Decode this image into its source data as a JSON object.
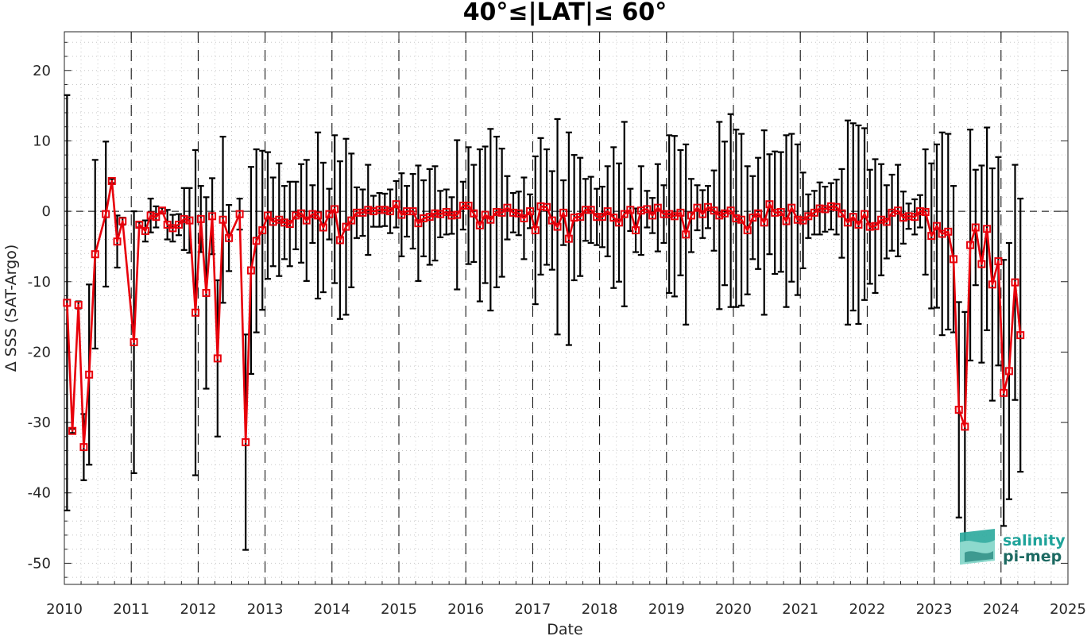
{
  "chart_data": {
    "type": "line",
    "title": "40°≤|LAT|≤ 60°",
    "xlabel": "Date",
    "ylabel": "Δ SSS (SAT-Argo)",
    "xlim": [
      2010,
      2025
    ],
    "ylim": [
      -53,
      25.5
    ],
    "xticks": [
      "2010",
      "2011",
      "2012",
      "2013",
      "2014",
      "2015",
      "2016",
      "2017",
      "2018",
      "2019",
      "2020",
      "2021",
      "2022",
      "2023",
      "2024",
      "2025"
    ],
    "yticks": [
      "20",
      "10",
      "0",
      "-10",
      "-20",
      "-30",
      "-40",
      "-50"
    ],
    "grid": "minor dotted",
    "year_separators": "dashed vertical line at each year",
    "zero_line": "dashed horizontal line at 0",
    "colors": {
      "series": "#e8000b",
      "errorbar": "#000000",
      "logo_teal": "#1fa39a",
      "logo_dark": "#1d6a62"
    },
    "series": [
      {
        "marker": "square",
        "points": [
          {
            "x": 2010.04,
            "y": -13.0,
            "err": 29.5
          },
          {
            "x": 2010.12,
            "y": -31.2,
            "err": 0.3
          },
          {
            "x": 2010.21,
            "y": -13.3,
            "err": 0.5
          },
          {
            "x": 2010.29,
            "y": -33.5,
            "err": 4.7
          },
          {
            "x": 2010.37,
            "y": -23.2,
            "err": 12.8
          },
          {
            "x": 2010.46,
            "y": -6.1,
            "err": 13.4
          },
          {
            "x": 2010.62,
            "y": -0.4,
            "err": 10.3
          },
          {
            "x": 2010.71,
            "y": 4.3,
            "err": 0.3
          },
          {
            "x": 2010.79,
            "y": -4.3,
            "err": 3.7
          },
          {
            "x": 2010.87,
            "y": -1.4,
            "err": 0.5
          },
          {
            "x": 2011.04,
            "y": -18.6,
            "err": 18.6
          },
          {
            "x": 2011.12,
            "y": -1.9,
            "err": 0.4
          },
          {
            "x": 2011.21,
            "y": -2.8,
            "err": 1.5
          },
          {
            "x": 2011.29,
            "y": -0.6,
            "err": 2.4
          },
          {
            "x": 2011.37,
            "y": -0.8,
            "err": 1.5
          },
          {
            "x": 2011.46,
            "y": 0.1,
            "err": 0.4
          },
          {
            "x": 2011.54,
            "y": -1.9,
            "err": 2.1
          },
          {
            "x": 2011.62,
            "y": -2.4,
            "err": 1.9
          },
          {
            "x": 2011.71,
            "y": -1.9,
            "err": 1.5
          },
          {
            "x": 2011.79,
            "y": -1.1,
            "err": 4.4
          },
          {
            "x": 2011.87,
            "y": -1.3,
            "err": 4.6
          },
          {
            "x": 2011.96,
            "y": -14.4,
            "err": 23.1
          },
          {
            "x": 2012.04,
            "y": -1.1,
            "err": 4.7
          },
          {
            "x": 2012.12,
            "y": -11.6,
            "err": 13.6
          },
          {
            "x": 2012.21,
            "y": -0.7,
            "err": 5.4
          },
          {
            "x": 2012.29,
            "y": -20.9,
            "err": 11.1
          },
          {
            "x": 2012.37,
            "y": -1.2,
            "err": 11.8
          },
          {
            "x": 2012.46,
            "y": -3.8,
            "err": 4.7
          },
          {
            "x": 2012.62,
            "y": -0.4,
            "err": 2.2
          },
          {
            "x": 2012.71,
            "y": -32.8,
            "err": 15.3
          },
          {
            "x": 2012.79,
            "y": -8.4,
            "err": 14.7
          },
          {
            "x": 2012.87,
            "y": -4.2,
            "err": 13.0
          },
          {
            "x": 2012.96,
            "y": -2.7,
            "err": 11.3
          },
          {
            "x": 2013.04,
            "y": -0.6,
            "err": 9.0
          },
          {
            "x": 2013.12,
            "y": -1.5,
            "err": 6.3
          },
          {
            "x": 2013.21,
            "y": -1.2,
            "err": 8.0
          },
          {
            "x": 2013.29,
            "y": -1.6,
            "err": 5.2
          },
          {
            "x": 2013.37,
            "y": -1.8,
            "err": 6.0
          },
          {
            "x": 2013.46,
            "y": -0.6,
            "err": 4.8
          },
          {
            "x": 2013.54,
            "y": -0.3,
            "err": 7.0
          },
          {
            "x": 2013.62,
            "y": -1.3,
            "err": 8.6
          },
          {
            "x": 2013.71,
            "y": -0.4,
            "err": 4.1
          },
          {
            "x": 2013.79,
            "y": -0.6,
            "err": 11.8
          },
          {
            "x": 2013.87,
            "y": -2.3,
            "err": 9.2
          },
          {
            "x": 2013.96,
            "y": -0.4,
            "err": 3.6
          },
          {
            "x": 2014.04,
            "y": 0.3,
            "err": 10.5
          },
          {
            "x": 2014.12,
            "y": -4.1,
            "err": 11.2
          },
          {
            "x": 2014.21,
            "y": -2.2,
            "err": 12.5
          },
          {
            "x": 2014.29,
            "y": -1.3,
            "err": 9.5
          },
          {
            "x": 2014.37,
            "y": -0.2,
            "err": 3.6
          },
          {
            "x": 2014.46,
            "y": -0.2,
            "err": 3.3
          },
          {
            "x": 2014.54,
            "y": 0.2,
            "err": 6.4
          },
          {
            "x": 2014.62,
            "y": 0.0,
            "err": 2.2
          },
          {
            "x": 2014.71,
            "y": 0.2,
            "err": 2.4
          },
          {
            "x": 2014.79,
            "y": 0.2,
            "err": 2.3
          },
          {
            "x": 2014.87,
            "y": 0.0,
            "err": 3.1
          },
          {
            "x": 2014.96,
            "y": 1.0,
            "err": 3.3
          },
          {
            "x": 2015.04,
            "y": -0.5,
            "err": 5.9
          },
          {
            "x": 2015.12,
            "y": 0.0,
            "err": 3.6
          },
          {
            "x": 2015.21,
            "y": 0.0,
            "err": 5.3
          },
          {
            "x": 2015.29,
            "y": -1.7,
            "err": 8.2
          },
          {
            "x": 2015.37,
            "y": -1.0,
            "err": 5.4
          },
          {
            "x": 2015.46,
            "y": -0.8,
            "err": 6.8
          },
          {
            "x": 2015.54,
            "y": -0.3,
            "err": 6.7
          },
          {
            "x": 2015.62,
            "y": -0.4,
            "err": 3.3
          },
          {
            "x": 2015.71,
            "y": -0.1,
            "err": 3.2
          },
          {
            "x": 2015.79,
            "y": -0.6,
            "err": 2.6
          },
          {
            "x": 2015.87,
            "y": -0.5,
            "err": 10.6
          },
          {
            "x": 2015.96,
            "y": 0.8,
            "err": 3.4
          },
          {
            "x": 2016.04,
            "y": 0.8,
            "err": 8.3
          },
          {
            "x": 2016.12,
            "y": -0.3,
            "err": 6.9
          },
          {
            "x": 2016.21,
            "y": -2.0,
            "err": 10.8
          },
          {
            "x": 2016.29,
            "y": -0.5,
            "err": 9.7
          },
          {
            "x": 2016.37,
            "y": -1.2,
            "err": 12.9
          },
          {
            "x": 2016.46,
            "y": -0.1,
            "err": 10.7
          },
          {
            "x": 2016.54,
            "y": -0.2,
            "err": 9.1
          },
          {
            "x": 2016.62,
            "y": 0.5,
            "err": 4.5
          },
          {
            "x": 2016.71,
            "y": -0.2,
            "err": 2.8
          },
          {
            "x": 2016.79,
            "y": -0.3,
            "err": 3.1
          },
          {
            "x": 2016.87,
            "y": -1.0,
            "err": 5.8
          },
          {
            "x": 2016.96,
            "y": 0.0,
            "err": 2.4
          },
          {
            "x": 2017.04,
            "y": -2.7,
            "err": 10.5
          },
          {
            "x": 2017.12,
            "y": 0.7,
            "err": 9.7
          },
          {
            "x": 2017.21,
            "y": 0.6,
            "err": 8.2
          },
          {
            "x": 2017.29,
            "y": -1.3,
            "err": 7.0
          },
          {
            "x": 2017.37,
            "y": -2.2,
            "err": 15.3
          },
          {
            "x": 2017.46,
            "y": -0.2,
            "err": 4.6
          },
          {
            "x": 2017.54,
            "y": -3.9,
            "err": 15.1
          },
          {
            "x": 2017.62,
            "y": -0.9,
            "err": 8.9
          },
          {
            "x": 2017.71,
            "y": -0.8,
            "err": 8.4
          },
          {
            "x": 2017.79,
            "y": 0.2,
            "err": 4.4
          },
          {
            "x": 2017.87,
            "y": 0.2,
            "err": 4.7
          },
          {
            "x": 2017.96,
            "y": -0.8,
            "err": 4.0
          },
          {
            "x": 2018.04,
            "y": -0.8,
            "err": 4.3
          },
          {
            "x": 2018.12,
            "y": 0.0,
            "err": 6.4
          },
          {
            "x": 2018.21,
            "y": -0.9,
            "err": 10.0
          },
          {
            "x": 2018.29,
            "y": -1.6,
            "err": 8.4
          },
          {
            "x": 2018.37,
            "y": -0.4,
            "err": 13.1
          },
          {
            "x": 2018.46,
            "y": 0.2,
            "err": 3.0
          },
          {
            "x": 2018.54,
            "y": -2.7,
            "err": 3.1
          },
          {
            "x": 2018.62,
            "y": 0.1,
            "err": 6.3
          },
          {
            "x": 2018.71,
            "y": 0.3,
            "err": 2.6
          },
          {
            "x": 2018.79,
            "y": -0.6,
            "err": 2.5
          },
          {
            "x": 2018.87,
            "y": 0.5,
            "err": 6.2
          },
          {
            "x": 2018.96,
            "y": -0.4,
            "err": 4.1
          },
          {
            "x": 2019.04,
            "y": -0.4,
            "err": 11.2
          },
          {
            "x": 2019.12,
            "y": -0.7,
            "err": 11.4
          },
          {
            "x": 2019.21,
            "y": -0.2,
            "err": 8.9
          },
          {
            "x": 2019.29,
            "y": -3.3,
            "err": 12.8
          },
          {
            "x": 2019.37,
            "y": -0.6,
            "err": 5.2
          },
          {
            "x": 2019.46,
            "y": 0.5,
            "err": 3.2
          },
          {
            "x": 2019.54,
            "y": -0.4,
            "err": 3.4
          },
          {
            "x": 2019.62,
            "y": 0.6,
            "err": 3.0
          },
          {
            "x": 2019.71,
            "y": 0.1,
            "err": 5.7
          },
          {
            "x": 2019.79,
            "y": -0.6,
            "err": 13.3
          },
          {
            "x": 2019.87,
            "y": -0.3,
            "err": 10.2
          },
          {
            "x": 2019.96,
            "y": 0.1,
            "err": 13.7
          },
          {
            "x": 2020.04,
            "y": -1.0,
            "err": 12.6
          },
          {
            "x": 2020.12,
            "y": -1.2,
            "err": 12.2
          },
          {
            "x": 2020.21,
            "y": -2.7,
            "err": 9.1
          },
          {
            "x": 2020.29,
            "y": -0.9,
            "err": 5.9
          },
          {
            "x": 2020.37,
            "y": -0.3,
            "err": 7.9
          },
          {
            "x": 2020.46,
            "y": -1.6,
            "err": 13.1
          },
          {
            "x": 2020.54,
            "y": 1.0,
            "err": 7.1
          },
          {
            "x": 2020.62,
            "y": -0.2,
            "err": 8.7
          },
          {
            "x": 2020.71,
            "y": -0.1,
            "err": 8.5
          },
          {
            "x": 2020.79,
            "y": -1.4,
            "err": 12.2
          },
          {
            "x": 2020.87,
            "y": 0.5,
            "err": 10.5
          },
          {
            "x": 2020.96,
            "y": -1.2,
            "err": 10.7
          },
          {
            "x": 2021.04,
            "y": -1.3,
            "err": 6.8
          },
          {
            "x": 2021.12,
            "y": -0.7,
            "err": 3.1
          },
          {
            "x": 2021.21,
            "y": -0.2,
            "err": 3.1
          },
          {
            "x": 2021.29,
            "y": 0.4,
            "err": 3.7
          },
          {
            "x": 2021.37,
            "y": 0.3,
            "err": 3.2
          },
          {
            "x": 2021.46,
            "y": 0.7,
            "err": 3.3
          },
          {
            "x": 2021.54,
            "y": 0.6,
            "err": 3.9
          },
          {
            "x": 2021.62,
            "y": -0.3,
            "err": 6.3
          },
          {
            "x": 2021.71,
            "y": -1.6,
            "err": 14.5
          },
          {
            "x": 2021.79,
            "y": -0.8,
            "err": 13.3
          },
          {
            "x": 2021.87,
            "y": -1.9,
            "err": 14.1
          },
          {
            "x": 2021.96,
            "y": -0.4,
            "err": 12.2
          },
          {
            "x": 2022.04,
            "y": -2.2,
            "err": 8.1
          },
          {
            "x": 2022.12,
            "y": -2.1,
            "err": 9.5
          },
          {
            "x": 2022.21,
            "y": -1.2,
            "err": 7.9
          },
          {
            "x": 2022.29,
            "y": -1.5,
            "err": 5.2
          },
          {
            "x": 2022.37,
            "y": -0.2,
            "err": 5.4
          },
          {
            "x": 2022.46,
            "y": 0.1,
            "err": 6.5
          },
          {
            "x": 2022.54,
            "y": -0.9,
            "err": 3.7
          },
          {
            "x": 2022.62,
            "y": -0.7,
            "err": 1.8
          },
          {
            "x": 2022.71,
            "y": -0.8,
            "err": 2.5
          },
          {
            "x": 2022.79,
            "y": 0.0,
            "err": 2.3
          },
          {
            "x": 2022.87,
            "y": -0.1,
            "err": 8.9
          },
          {
            "x": 2022.96,
            "y": -3.5,
            "err": 10.3
          },
          {
            "x": 2023.04,
            "y": -2.1,
            "err": 11.6
          },
          {
            "x": 2023.12,
            "y": -3.2,
            "err": 14.4
          },
          {
            "x": 2023.21,
            "y": -2.9,
            "err": 13.9
          },
          {
            "x": 2023.29,
            "y": -6.8,
            "err": 10.4
          },
          {
            "x": 2023.37,
            "y": -28.2,
            "err": 15.3
          },
          {
            "x": 2023.46,
            "y": -30.6,
            "err": 16.3
          },
          {
            "x": 2023.54,
            "y": -4.8,
            "err": 16.4
          },
          {
            "x": 2023.62,
            "y": -2.3,
            "err": 8.2
          },
          {
            "x": 2023.71,
            "y": -7.5,
            "err": 14.0
          },
          {
            "x": 2023.79,
            "y": -2.5,
            "err": 14.4
          },
          {
            "x": 2023.87,
            "y": -10.4,
            "err": 16.5
          },
          {
            "x": 2023.96,
            "y": -7.1,
            "err": 14.8
          },
          {
            "x": 2024.04,
            "y": -25.8,
            "err": 18.9
          },
          {
            "x": 2024.12,
            "y": -22.7,
            "err": 18.2
          },
          {
            "x": 2024.21,
            "y": -10.1,
            "err": 16.7
          },
          {
            "x": 2024.29,
            "y": -17.6,
            "err": 19.4
          }
        ]
      }
    ],
    "logo": {
      "line1": "salinity",
      "line2": "pi-mep"
    }
  }
}
